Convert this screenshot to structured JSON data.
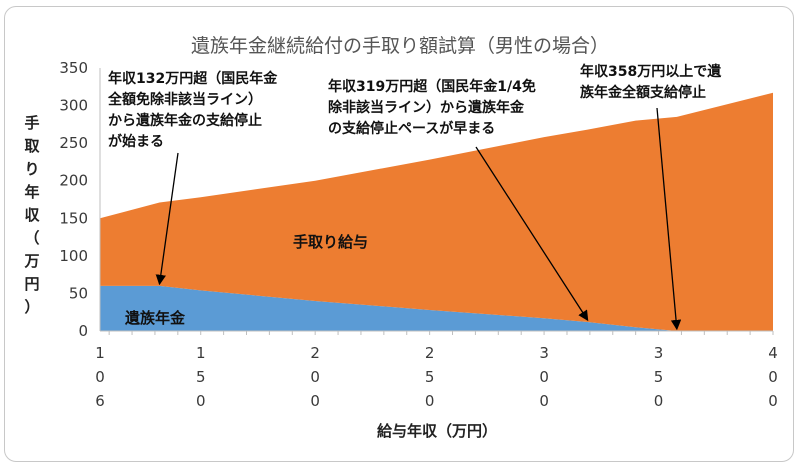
{
  "chart_data": {
    "type": "area",
    "title": "遺族年金継続給付の手取り額試算（男性の場合）",
    "xlabel": "給与年収（万円）",
    "ylabel": "手取り年収（万円）",
    "ylim": [
      0,
      350
    ],
    "yticks": [
      "0",
      "50",
      "100",
      "150",
      "200",
      "250",
      "300",
      "350"
    ],
    "xlim": [
      106,
      400
    ],
    "xticks": [
      {
        "value": 106,
        "chars": [
          "1",
          "0",
          "6"
        ]
      },
      {
        "value": 150,
        "chars": [
          "1",
          "5",
          "0"
        ]
      },
      {
        "value": 200,
        "chars": [
          "2",
          "0",
          "0"
        ]
      },
      {
        "value": 250,
        "chars": [
          "2",
          "5",
          "0"
        ]
      },
      {
        "value": 300,
        "chars": [
          "3",
          "0",
          "0"
        ]
      },
      {
        "value": 350,
        "chars": [
          "3",
          "5",
          "0"
        ]
      },
      {
        "value": 400,
        "chars": [
          "4",
          "0",
          "0"
        ]
      }
    ],
    "stacked": true,
    "grid": false,
    "series": [
      {
        "name": "遺族年金",
        "color": "#5b9bd5",
        "x": [
          106,
          132,
          150,
          200,
          250,
          300,
          319,
          340,
          358,
          400
        ],
        "y": [
          60,
          60,
          54,
          40,
          28,
          17,
          12,
          5,
          0,
          0
        ]
      },
      {
        "name": "手取り給与",
        "color": "#ed7d31",
        "x": [
          106,
          132,
          150,
          200,
          250,
          300,
          319,
          340,
          358,
          400
        ],
        "y": [
          90,
          111,
          124,
          160,
          200,
          241,
          256,
          275,
          285,
          317
        ]
      }
    ],
    "annotations": [
      {
        "lines": [
          "年収132万円超（国民年金",
          "全額免除非該当ライン）",
          "から遺族年金の支給停止",
          "が始まる"
        ],
        "target_x": 132,
        "target_y": 60
      },
      {
        "lines": [
          "年収319万円超（国民年金1/4免",
          "除非該当ライン）から遺族年金",
          "の支給停止ペースが早まる"
        ],
        "target_x": 319,
        "target_y": 12
      },
      {
        "lines": [
          "年収358万円以上で遺",
          "族年金全額支給停止"
        ],
        "target_x": 358,
        "target_y": 0
      }
    ]
  }
}
